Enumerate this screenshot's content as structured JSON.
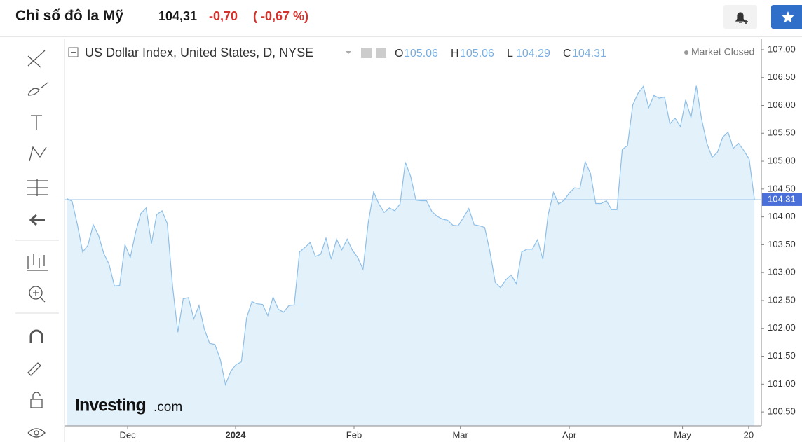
{
  "header": {
    "title": "Chỉ số đô la Mỹ",
    "price": "104,31",
    "change": "-0,70",
    "change_percent": "( -0,67 %)"
  },
  "legend": {
    "instrument": "US Dollar Index, United States, D, NYSE",
    "ohlc": [
      {
        "label": "O",
        "value": "105.06"
      },
      {
        "label": "H",
        "value": "105.06"
      },
      {
        "label": "L",
        "value": "104.29"
      },
      {
        "label": "C",
        "value": "104.31"
      }
    ],
    "status": "Market Closed"
  },
  "watermark": {
    "brand": "Investing",
    "suffix": ".com"
  },
  "chart_data": {
    "type": "area",
    "color": "#8dbfe8",
    "fill": "#e3f1fa",
    "values": [
      104.33,
      104.28,
      103.86,
      103.37,
      103.49,
      103.86,
      103.67,
      103.34,
      103.15,
      102.76,
      102.77,
      103.5,
      103.27,
      103.72,
      104.06,
      104.16,
      103.52,
      104.04,
      104.11,
      103.88,
      102.75,
      101.93,
      102.53,
      102.55,
      102.17,
      102.41,
      101.99,
      101.73,
      101.71,
      101.45,
      100.99,
      101.23,
      101.35,
      101.4,
      102.19,
      102.48,
      102.44,
      102.43,
      102.23,
      102.56,
      102.34,
      102.29,
      102.41,
      102.42,
      103.37,
      103.45,
      103.54,
      103.29,
      103.33,
      103.62,
      103.24,
      103.6,
      103.41,
      103.6,
      103.4,
      103.27,
      103.06,
      103.91,
      104.45,
      104.23,
      104.08,
      104.16,
      104.11,
      104.23,
      104.98,
      104.73,
      104.3,
      104.29,
      104.29,
      104.1,
      104.01,
      103.96,
      103.94,
      103.85,
      103.84,
      103.99,
      104.15,
      103.86,
      103.84,
      103.81,
      103.37,
      102.82,
      102.73,
      102.87,
      102.96,
      102.8,
      103.37,
      103.42,
      103.42,
      103.59,
      103.24,
      104.04,
      104.44,
      104.23,
      104.3,
      104.43,
      104.52,
      104.51,
      104.99,
      104.78,
      104.24,
      104.24,
      104.29,
      104.13,
      104.13,
      105.21,
      105.28,
      106.01,
      106.22,
      106.34,
      105.96,
      106.18,
      106.13,
      106.15,
      105.67,
      105.77,
      105.62,
      106.1,
      105.78,
      106.35,
      105.76,
      105.32,
      105.07,
      105.16,
      105.43,
      105.52,
      105.23,
      105.32,
      105.19,
      105.04,
      104.31
    ],
    "last_value": {
      "value": 104.31,
      "label": "104.31"
    },
    "xlim": [
      -0.3,
      131.3
    ],
    "xticks": [
      {
        "value": 11.5,
        "label": "Dec"
      },
      {
        "value": 31.9,
        "label": "2024"
      },
      {
        "value": 54.3,
        "label": "Feb"
      },
      {
        "value": 74.4,
        "label": "Mar"
      },
      {
        "value": 95,
        "label": "Apr"
      },
      {
        "value": 116.4,
        "label": "May"
      },
      {
        "value": 128.9,
        "label": "20"
      }
    ],
    "ylim": [
      100.25,
      107.2
    ],
    "yticks": [
      {
        "value": 100.5,
        "label": "100.50"
      },
      {
        "value": 101,
        "label": "101.00"
      },
      {
        "value": 101.5,
        "label": "101.50"
      },
      {
        "value": 102,
        "label": "102.00"
      },
      {
        "value": 102.5,
        "label": "102.50"
      },
      {
        "value": 103,
        "label": "103.00"
      },
      {
        "value": 103.5,
        "label": "103.50"
      },
      {
        "value": 104,
        "label": "104.00"
      },
      {
        "value": 104.5,
        "label": "104.50"
      },
      {
        "value": 105,
        "label": "105.00"
      },
      {
        "value": 105.5,
        "label": "105.50"
      },
      {
        "value": 106,
        "label": "106.00"
      },
      {
        "value": 106.5,
        "label": "106.50"
      },
      {
        "value": 107,
        "label": "107.00"
      }
    ]
  }
}
